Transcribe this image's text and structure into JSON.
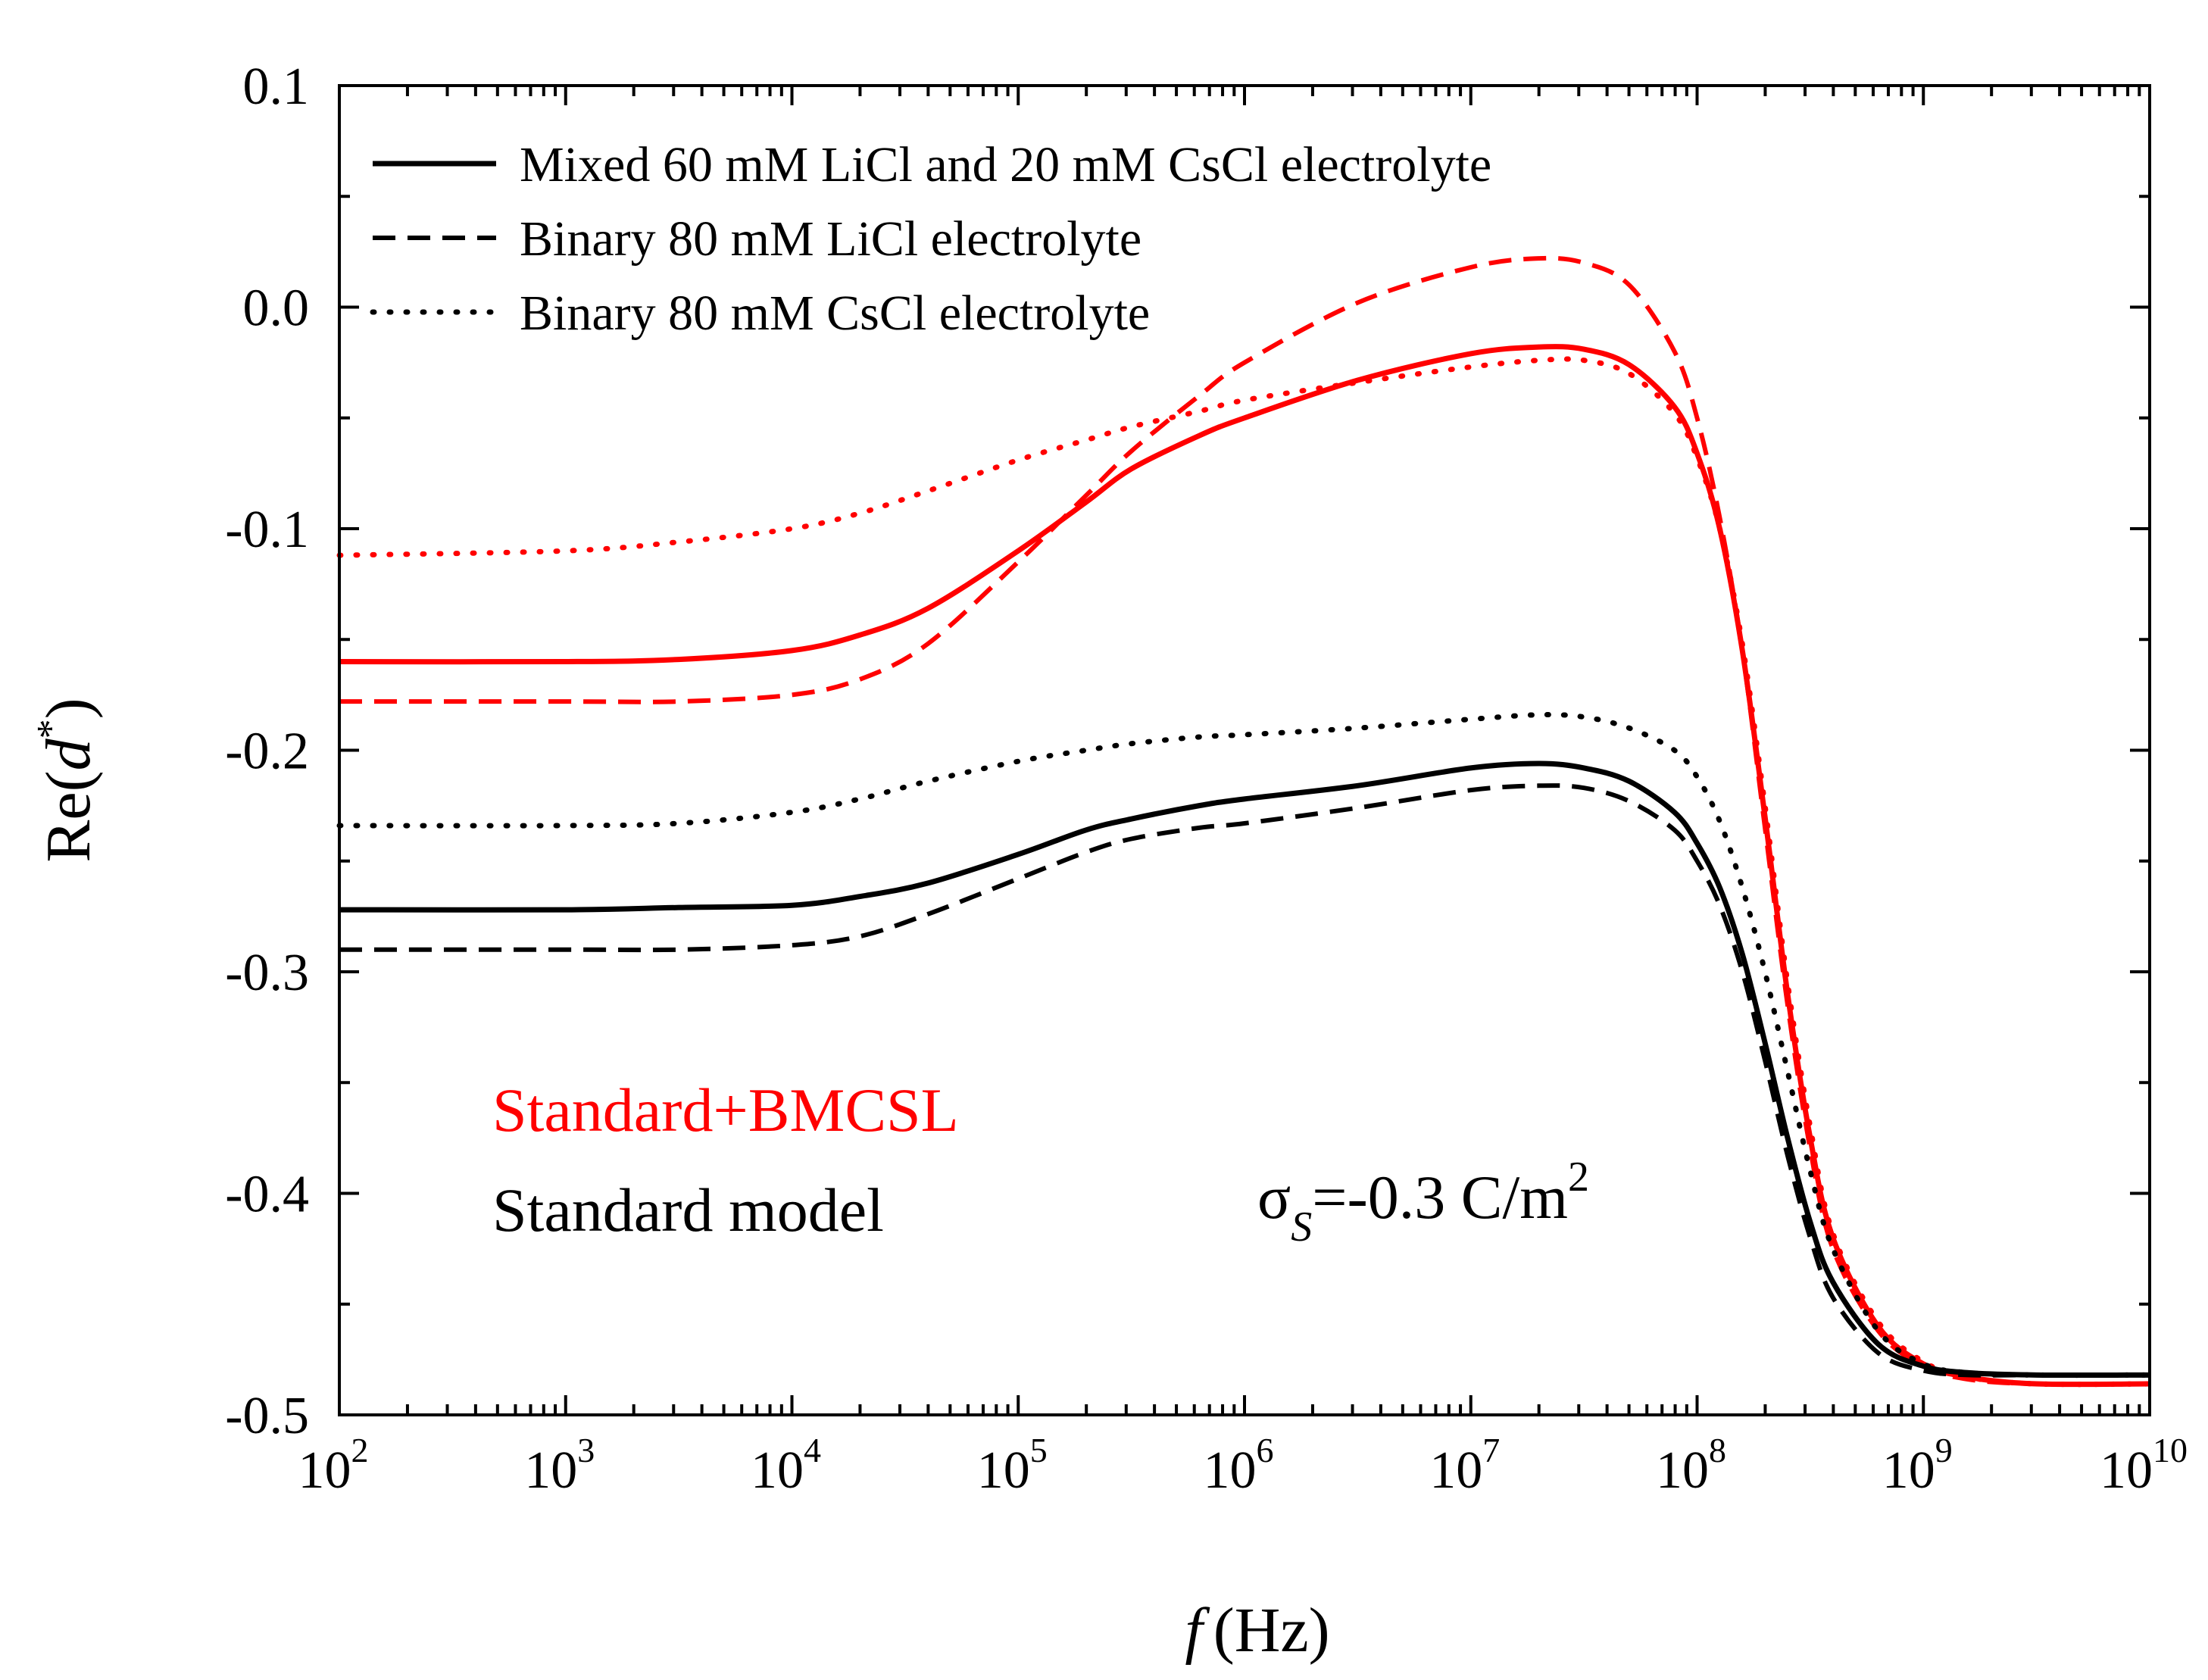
{
  "chart_data": {
    "type": "line",
    "title": "",
    "xlabel": {
      "symbol": "f",
      "unit": "(Hz)"
    },
    "ylabel": {
      "prefix": "Re(",
      "symbol": "d",
      "superscript": "*",
      "suffix": ")"
    },
    "x_scale": "log",
    "xlim": [
      100,
      10000000000
    ],
    "ylim": [
      -0.5,
      0.1
    ],
    "x_ticks": [
      {
        "base": "10",
        "exp": "2"
      },
      {
        "base": "10",
        "exp": "3"
      },
      {
        "base": "10",
        "exp": "4"
      },
      {
        "base": "10",
        "exp": "5"
      },
      {
        "base": "10",
        "exp": "6"
      },
      {
        "base": "10",
        "exp": "7"
      },
      {
        "base": "10",
        "exp": "8"
      },
      {
        "base": "10",
        "exp": "9"
      },
      {
        "base": "10",
        "exp": "10"
      }
    ],
    "y_ticks": [
      {
        "value": 0.1,
        "label": "0.1"
      },
      {
        "value": 0.0,
        "label": "0.0"
      },
      {
        "value": -0.1,
        "label": "-0.1"
      },
      {
        "value": -0.2,
        "label": "-0.2"
      },
      {
        "value": -0.3,
        "label": "-0.3"
      },
      {
        "value": -0.4,
        "label": "-0.4"
      },
      {
        "value": -0.5,
        "label": "-0.5"
      }
    ],
    "grid": false,
    "legend": {
      "placement": "top-left",
      "entries": [
        {
          "label": "Mixed 60 mM LiCl and 20 mM CsCl electrolyte",
          "style": "solid"
        },
        {
          "label": "Binary 80 mM LiCl electrolyte",
          "style": "dashed"
        },
        {
          "label": "Binary 80 mM CsCl electrolyte",
          "style": "dotted"
        }
      ]
    },
    "annotations": {
      "model_bmcsl": "Standard+BMCSL",
      "model_standard": "Standard model",
      "surface_charge": {
        "sigma": "σ",
        "subscript": "S",
        "value": "=-0.3 C/m",
        "superscript": "2"
      }
    },
    "colors": {
      "standard_bmcsl": "#ff0000",
      "standard": "#000000"
    },
    "series": [
      {
        "name": "Standard+BMCSL, Mixed 60 mM LiCl and 20 mM CsCl",
        "model": "standard_bmcsl",
        "style": "solid",
        "log10_f": [
          2,
          3,
          3.5,
          4,
          4.3,
          4.6,
          5,
          5.3,
          5.5,
          5.8,
          6,
          6.5,
          7,
          7.3,
          7.5,
          7.7,
          7.9,
          8,
          8.1,
          8.2,
          8.3,
          8.4,
          8.5,
          8.6,
          8.8,
          9,
          9.2,
          9.5,
          10
        ],
        "values": [
          -0.16,
          -0.16,
          -0.159,
          -0.155,
          -0.148,
          -0.136,
          -0.11,
          -0.088,
          -0.073,
          -0.058,
          -0.05,
          -0.033,
          -0.021,
          -0.018,
          -0.019,
          -0.026,
          -0.045,
          -0.066,
          -0.1,
          -0.155,
          -0.23,
          -0.31,
          -0.375,
          -0.42,
          -0.46,
          -0.477,
          -0.483,
          -0.486,
          -0.486
        ]
      },
      {
        "name": "Standard+BMCSL, Binary 80 mM LiCl",
        "model": "standard_bmcsl",
        "style": "dashed",
        "log10_f": [
          2,
          3,
          3.5,
          4,
          4.3,
          4.6,
          5,
          5.3,
          5.5,
          5.8,
          6,
          6.5,
          7,
          7.3,
          7.5,
          7.7,
          7.9,
          8,
          8.1,
          8.2,
          8.3,
          8.4,
          8.5,
          8.6,
          8.8,
          9,
          9.2,
          9.5,
          10
        ],
        "values": [
          -0.178,
          -0.178,
          -0.178,
          -0.175,
          -0.168,
          -0.152,
          -0.115,
          -0.085,
          -0.065,
          -0.04,
          -0.025,
          0.002,
          0.018,
          0.022,
          0.02,
          0.01,
          -0.02,
          -0.05,
          -0.095,
          -0.155,
          -0.235,
          -0.315,
          -0.38,
          -0.425,
          -0.462,
          -0.478,
          -0.484,
          -0.486,
          -0.486
        ]
      },
      {
        "name": "Standard+BMCSL, Binary 80 mM CsCl",
        "model": "standard_bmcsl",
        "style": "dotted",
        "log10_f": [
          2,
          3,
          3.5,
          4,
          4.3,
          4.6,
          5,
          5.3,
          5.5,
          5.8,
          6,
          6.5,
          7,
          7.3,
          7.5,
          7.7,
          7.9,
          8,
          8.1,
          8.2,
          8.3,
          8.4,
          8.5,
          8.6,
          8.8,
          9,
          9.2,
          9.5,
          10
        ],
        "values": [
          -0.112,
          -0.11,
          -0.106,
          -0.1,
          -0.093,
          -0.083,
          -0.069,
          -0.06,
          -0.054,
          -0.047,
          -0.042,
          -0.034,
          -0.027,
          -0.024,
          -0.024,
          -0.03,
          -0.048,
          -0.068,
          -0.1,
          -0.152,
          -0.225,
          -0.305,
          -0.37,
          -0.418,
          -0.458,
          -0.476,
          -0.483,
          -0.486,
          -0.486
        ]
      },
      {
        "name": "Standard model, Mixed 60 mM LiCl and 20 mM CsCl",
        "model": "standard",
        "style": "solid",
        "log10_f": [
          2,
          3,
          3.5,
          4,
          4.3,
          4.6,
          5,
          5.3,
          5.5,
          5.8,
          6,
          6.5,
          7,
          7.3,
          7.5,
          7.7,
          7.9,
          8,
          8.1,
          8.2,
          8.3,
          8.4,
          8.5,
          8.6,
          8.8,
          9,
          9.2,
          9.5,
          10
        ],
        "values": [
          -0.272,
          -0.272,
          -0.271,
          -0.27,
          -0.266,
          -0.26,
          -0.247,
          -0.236,
          -0.231,
          -0.225,
          -0.222,
          -0.216,
          -0.208,
          -0.206,
          -0.208,
          -0.214,
          -0.228,
          -0.242,
          -0.262,
          -0.292,
          -0.332,
          -0.375,
          -0.413,
          -0.44,
          -0.468,
          -0.478,
          -0.481,
          -0.482,
          -0.482
        ]
      },
      {
        "name": "Standard model, Binary 80 mM LiCl",
        "model": "standard",
        "style": "dashed",
        "log10_f": [
          2,
          3,
          3.5,
          4,
          4.3,
          4.6,
          5,
          5.3,
          5.5,
          5.8,
          6,
          6.5,
          7,
          7.3,
          7.5,
          7.7,
          7.9,
          8,
          8.1,
          8.2,
          8.3,
          8.4,
          8.5,
          8.6,
          8.8,
          9,
          9.2,
          9.5,
          10
        ],
        "values": [
          -0.29,
          -0.29,
          -0.29,
          -0.288,
          -0.284,
          -0.274,
          -0.258,
          -0.246,
          -0.24,
          -0.235,
          -0.233,
          -0.226,
          -0.218,
          -0.216,
          -0.217,
          -0.223,
          -0.236,
          -0.25,
          -0.27,
          -0.3,
          -0.34,
          -0.383,
          -0.42,
          -0.447,
          -0.472,
          -0.48,
          -0.482,
          -0.482,
          -0.482
        ]
      },
      {
        "name": "Standard model, Binary 80 mM CsCl",
        "model": "standard",
        "style": "dotted",
        "log10_f": [
          2,
          3,
          3.5,
          4,
          4.3,
          4.6,
          5,
          5.3,
          5.5,
          5.8,
          6,
          6.5,
          7,
          7.3,
          7.5,
          7.7,
          7.9,
          8,
          8.1,
          8.2,
          8.3,
          8.4,
          8.5,
          8.6,
          8.8,
          9,
          9.2,
          9.5,
          10
        ],
        "values": [
          -0.234,
          -0.234,
          -0.233,
          -0.228,
          -0.222,
          -0.214,
          -0.205,
          -0.2,
          -0.197,
          -0.194,
          -0.193,
          -0.19,
          -0.186,
          -0.184,
          -0.185,
          -0.19,
          -0.2,
          -0.212,
          -0.232,
          -0.262,
          -0.3,
          -0.345,
          -0.39,
          -0.425,
          -0.462,
          -0.477,
          -0.481,
          -0.482,
          -0.482
        ]
      }
    ]
  }
}
